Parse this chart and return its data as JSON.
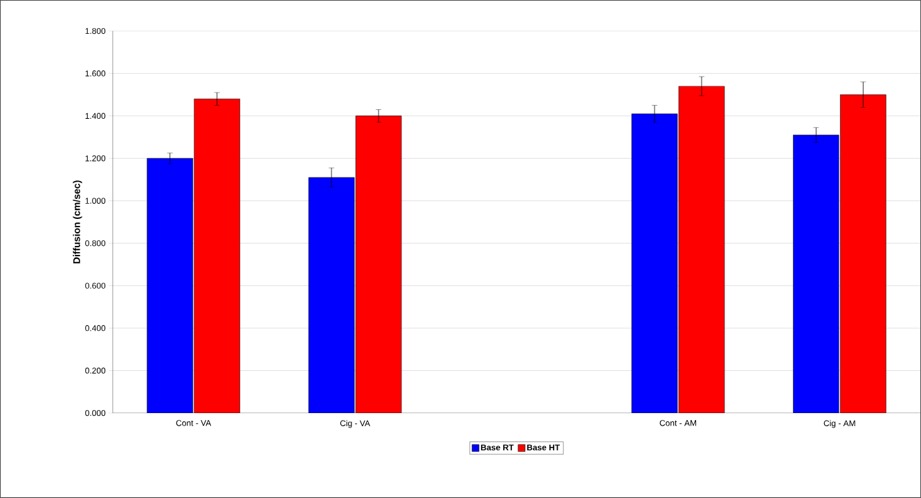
{
  "chart_data": {
    "type": "bar",
    "ylabel": "Diffusion (cm/sec)",
    "categories": [
      "Cont - VA",
      "Cig - VA",
      null,
      "Cont - AM",
      "Cig - AM"
    ],
    "series": [
      {
        "name": "Base RT",
        "color": "#0000ff",
        "values": [
          1.2,
          1.11,
          null,
          1.41,
          1.31
        ],
        "errors": [
          0.025,
          0.045,
          null,
          0.04,
          0.035
        ]
      },
      {
        "name": "Base HT",
        "color": "#ff0000",
        "values": [
          1.48,
          1.4,
          null,
          1.54,
          1.5
        ],
        "errors": [
          0.03,
          0.03,
          null,
          0.045,
          0.06
        ]
      }
    ],
    "ylim": [
      0,
      1.8
    ],
    "yticks": [
      {
        "value": 0,
        "label": "0.000"
      },
      {
        "value": 0.2,
        "label": "0.200"
      },
      {
        "value": 0.4,
        "label": "0.400"
      },
      {
        "value": 0.6,
        "label": "0.600"
      },
      {
        "value": 0.8,
        "label": "0.800"
      },
      {
        "value": 1.0,
        "label": "1.000"
      },
      {
        "value": 1.2,
        "label": "1.200"
      },
      {
        "value": 1.4,
        "label": "1.400"
      },
      {
        "value": 1.6,
        "label": "1.600"
      },
      {
        "value": 1.8,
        "label": "1.800"
      }
    ],
    "grid": "y",
    "legend": "bottom"
  }
}
